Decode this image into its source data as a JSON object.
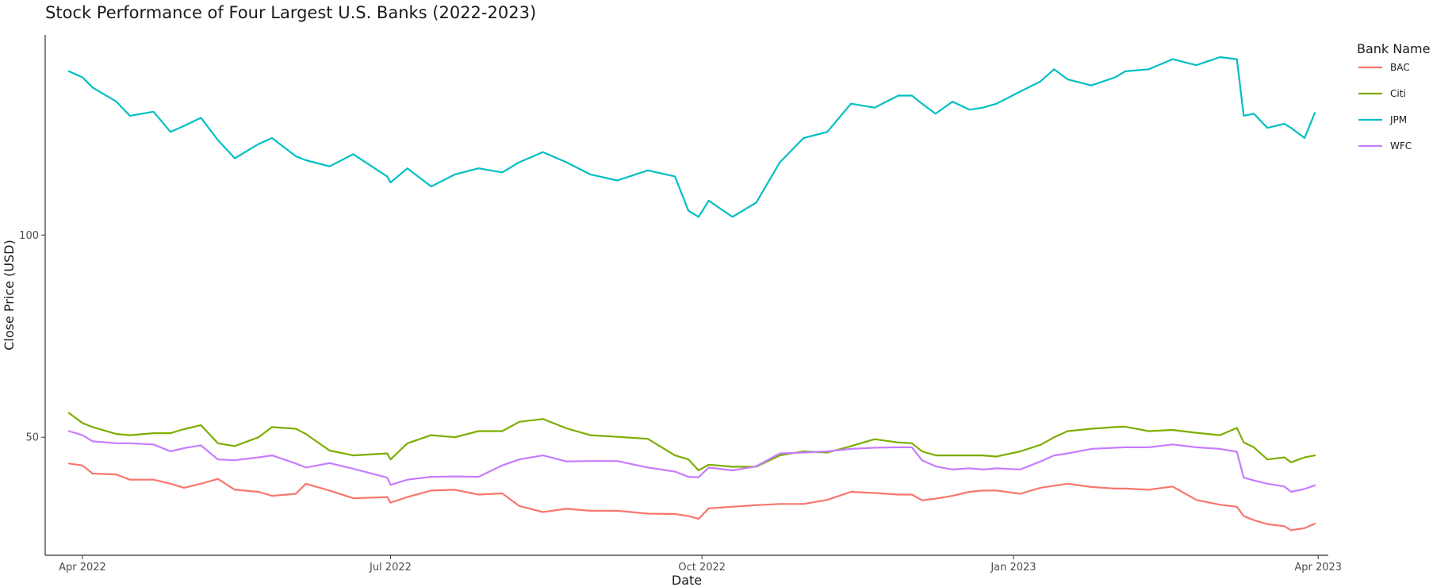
{
  "chart_data": {
    "type": "line",
    "title": "Stock Performance of Four Largest U.S. Banks (2022-2023)",
    "xlabel": "Date",
    "ylabel": "Close Price (USD)",
    "xlim": [
      "2022-03-21",
      "2023-04-04"
    ],
    "ylim": [
      20.8,
      149.5
    ],
    "grid": false,
    "legend_position": "right",
    "legend_title": "Bank Name",
    "x_ticks": [
      {
        "date": "2022-04-01",
        "label": "Apr 2022"
      },
      {
        "date": "2022-07-01",
        "label": "Jul 2022"
      },
      {
        "date": "2022-10-01",
        "label": "Oct 2022"
      },
      {
        "date": "2023-01-01",
        "label": "Jan 2023"
      },
      {
        "date": "2023-04-01",
        "label": "Apr 2023"
      }
    ],
    "y_ticks": [
      {
        "value": 50,
        "label": "50"
      },
      {
        "value": 100,
        "label": "100"
      }
    ],
    "series": [
      {
        "name": "BAC",
        "color": "#F8766D",
        "points": [
          [
            "2022-03-28",
            43.5
          ],
          [
            "2022-04-01",
            43
          ],
          [
            "2022-04-04",
            41
          ],
          [
            "2022-04-11",
            40.8
          ],
          [
            "2022-04-15",
            39.5
          ],
          [
            "2022-04-22",
            39.5
          ],
          [
            "2022-04-27",
            38.5
          ],
          [
            "2022-05-01",
            37.5
          ],
          [
            "2022-05-06",
            38.5
          ],
          [
            "2022-05-11",
            39.7
          ],
          [
            "2022-05-16",
            37
          ],
          [
            "2022-05-23",
            36.5
          ],
          [
            "2022-05-27",
            35.5
          ],
          [
            "2022-06-03",
            36
          ],
          [
            "2022-06-06",
            38.5
          ],
          [
            "2022-06-13",
            36.8
          ],
          [
            "2022-06-20",
            34.9
          ],
          [
            "2022-06-30",
            35.2
          ],
          [
            "2022-07-01",
            33.8
          ],
          [
            "2022-07-06",
            35.2
          ],
          [
            "2022-07-13",
            36.8
          ],
          [
            "2022-07-20",
            37
          ],
          [
            "2022-07-27",
            35.8
          ],
          [
            "2022-08-03",
            36.1
          ],
          [
            "2022-08-08",
            33
          ],
          [
            "2022-08-15",
            31.5
          ],
          [
            "2022-08-22",
            32.3
          ],
          [
            "2022-08-29",
            31.8
          ],
          [
            "2022-09-06",
            31.8
          ],
          [
            "2022-09-15",
            31.1
          ],
          [
            "2022-09-23",
            31
          ],
          [
            "2022-09-27",
            30.5
          ],
          [
            "2022-09-30",
            29.8
          ],
          [
            "2022-10-03",
            32.4
          ],
          [
            "2022-10-10",
            32.8
          ],
          [
            "2022-10-17",
            33.2
          ],
          [
            "2022-10-24",
            33.5
          ],
          [
            "2022-10-31",
            33.5
          ],
          [
            "2022-11-07",
            34.5
          ],
          [
            "2022-11-14",
            36.5
          ],
          [
            "2022-11-21",
            36.2
          ],
          [
            "2022-11-28",
            35.8
          ],
          [
            "2022-12-02",
            35.8
          ],
          [
            "2022-12-05",
            34.4
          ],
          [
            "2022-12-09",
            34.8
          ],
          [
            "2022-12-14",
            35.5
          ],
          [
            "2022-12-19",
            36.5
          ],
          [
            "2022-12-23",
            36.8
          ],
          [
            "2022-12-27",
            36.8
          ],
          [
            "2023-01-03",
            36
          ],
          [
            "2023-01-09",
            37.5
          ],
          [
            "2023-01-13",
            38
          ],
          [
            "2023-01-17",
            38.5
          ],
          [
            "2023-01-24",
            37.7
          ],
          [
            "2023-01-31",
            37.3
          ],
          [
            "2023-02-03",
            37.3
          ],
          [
            "2023-02-10",
            37
          ],
          [
            "2023-02-17",
            37.8
          ],
          [
            "2023-02-24",
            34.5
          ],
          [
            "2023-03-03",
            33.3
          ],
          [
            "2023-03-08",
            32.8
          ],
          [
            "2023-03-10",
            30.5
          ],
          [
            "2023-03-13",
            29.5
          ],
          [
            "2023-03-17",
            28.5
          ],
          [
            "2023-03-22",
            28
          ],
          [
            "2023-03-24",
            27
          ],
          [
            "2023-03-28",
            27.5
          ],
          [
            "2023-03-31",
            28.6
          ]
        ]
      },
      {
        "name": "Citi",
        "color": "#7CAE00",
        "points": [
          [
            "2022-03-28",
            56
          ],
          [
            "2022-04-01",
            53.5
          ],
          [
            "2022-04-04",
            52.5
          ],
          [
            "2022-04-11",
            50.8
          ],
          [
            "2022-04-15",
            50.5
          ],
          [
            "2022-04-22",
            51
          ],
          [
            "2022-04-27",
            51
          ],
          [
            "2022-05-01",
            52
          ],
          [
            "2022-05-06",
            53
          ],
          [
            "2022-05-11",
            48.5
          ],
          [
            "2022-05-16",
            47.8
          ],
          [
            "2022-05-23",
            50
          ],
          [
            "2022-05-27",
            52.5
          ],
          [
            "2022-06-03",
            52.1
          ],
          [
            "2022-06-06",
            50.8
          ],
          [
            "2022-06-13",
            46.7
          ],
          [
            "2022-06-20",
            45.5
          ],
          [
            "2022-06-30",
            46
          ],
          [
            "2022-07-01",
            44.5
          ],
          [
            "2022-07-06",
            48.5
          ],
          [
            "2022-07-13",
            50.5
          ],
          [
            "2022-07-20",
            50
          ],
          [
            "2022-07-27",
            51.5
          ],
          [
            "2022-08-03",
            51.5
          ],
          [
            "2022-08-08",
            53.8
          ],
          [
            "2022-08-15",
            54.5
          ],
          [
            "2022-08-22",
            52.2
          ],
          [
            "2022-08-29",
            50.5
          ],
          [
            "2022-09-06",
            50.1
          ],
          [
            "2022-09-15",
            49.6
          ],
          [
            "2022-09-23",
            45.5
          ],
          [
            "2022-09-27",
            44.5
          ],
          [
            "2022-09-30",
            41.8
          ],
          [
            "2022-10-03",
            43.2
          ],
          [
            "2022-10-10",
            42.7
          ],
          [
            "2022-10-17",
            42.7
          ],
          [
            "2022-10-24",
            45.5
          ],
          [
            "2022-10-31",
            46.5
          ],
          [
            "2022-11-07",
            46.2
          ],
          [
            "2022-11-14",
            47.8
          ],
          [
            "2022-11-21",
            49.5
          ],
          [
            "2022-11-28",
            48.7
          ],
          [
            "2022-12-02",
            48.5
          ],
          [
            "2022-12-05",
            46.5
          ],
          [
            "2022-12-09",
            45.5
          ],
          [
            "2022-12-14",
            45.5
          ],
          [
            "2022-12-19",
            45.5
          ],
          [
            "2022-12-23",
            45.5
          ],
          [
            "2022-12-27",
            45.2
          ],
          [
            "2023-01-03",
            46.5
          ],
          [
            "2023-01-09",
            48.1
          ],
          [
            "2023-01-13",
            50
          ],
          [
            "2023-01-17",
            51.5
          ],
          [
            "2023-01-24",
            52.1
          ],
          [
            "2023-01-31",
            52.5
          ],
          [
            "2023-02-03",
            52.6
          ],
          [
            "2023-02-10",
            51.5
          ],
          [
            "2023-02-17",
            51.8
          ],
          [
            "2023-02-24",
            51.1
          ],
          [
            "2023-03-03",
            50.5
          ],
          [
            "2023-03-08",
            52.3
          ],
          [
            "2023-03-10",
            48.7
          ],
          [
            "2023-03-13",
            47.5
          ],
          [
            "2023-03-17",
            44.5
          ],
          [
            "2023-03-22",
            45
          ],
          [
            "2023-03-24",
            43.8
          ],
          [
            "2023-03-28",
            45
          ],
          [
            "2023-03-31",
            45.5
          ]
        ]
      },
      {
        "name": "JPM",
        "color": "#00BFC4",
        "points": [
          [
            "2022-03-28",
            140.5
          ],
          [
            "2022-04-01",
            139
          ],
          [
            "2022-04-04",
            136.5
          ],
          [
            "2022-04-11",
            133
          ],
          [
            "2022-04-15",
            129.5
          ],
          [
            "2022-04-22",
            130.5
          ],
          [
            "2022-04-27",
            125.5
          ],
          [
            "2022-05-01",
            127
          ],
          [
            "2022-05-06",
            129
          ],
          [
            "2022-05-11",
            123.5
          ],
          [
            "2022-05-16",
            119
          ],
          [
            "2022-05-23",
            122.5
          ],
          [
            "2022-05-27",
            124
          ],
          [
            "2022-06-03",
            119.5
          ],
          [
            "2022-06-06",
            118.5
          ],
          [
            "2022-06-13",
            117
          ],
          [
            "2022-06-20",
            120
          ],
          [
            "2022-06-30",
            114.5
          ],
          [
            "2022-07-01",
            113
          ],
          [
            "2022-07-06",
            116.5
          ],
          [
            "2022-07-13",
            112
          ],
          [
            "2022-07-20",
            115
          ],
          [
            "2022-07-27",
            116.5
          ],
          [
            "2022-08-03",
            115.5
          ],
          [
            "2022-08-08",
            118
          ],
          [
            "2022-08-15",
            120.5
          ],
          [
            "2022-08-22",
            118
          ],
          [
            "2022-08-29",
            115
          ],
          [
            "2022-09-06",
            113.5
          ],
          [
            "2022-09-15",
            116
          ],
          [
            "2022-09-23",
            114.5
          ],
          [
            "2022-09-27",
            106
          ],
          [
            "2022-09-30",
            104.5
          ],
          [
            "2022-10-03",
            108.5
          ],
          [
            "2022-10-10",
            104.5
          ],
          [
            "2022-10-17",
            108
          ],
          [
            "2022-10-24",
            118
          ],
          [
            "2022-10-31",
            124
          ],
          [
            "2022-11-07",
            125.5
          ],
          [
            "2022-11-14",
            132.5
          ],
          [
            "2022-11-21",
            131.5
          ],
          [
            "2022-11-28",
            134.5
          ],
          [
            "2022-12-02",
            134.5
          ],
          [
            "2022-12-05",
            132.5
          ],
          [
            "2022-12-09",
            130
          ],
          [
            "2022-12-14",
            133
          ],
          [
            "2022-12-19",
            131
          ],
          [
            "2022-12-23",
            131.5
          ],
          [
            "2022-12-27",
            132.5
          ],
          [
            "2023-01-03",
            135.5
          ],
          [
            "2023-01-09",
            138
          ],
          [
            "2023-01-13",
            141
          ],
          [
            "2023-01-17",
            138.5
          ],
          [
            "2023-01-24",
            137
          ],
          [
            "2023-01-31",
            139
          ],
          [
            "2023-02-03",
            140.5
          ],
          [
            "2023-02-10",
            141
          ],
          [
            "2023-02-17",
            143.5
          ],
          [
            "2023-02-24",
            142
          ],
          [
            "2023-03-03",
            144
          ],
          [
            "2023-03-08",
            143.5
          ],
          [
            "2023-03-10",
            129.5
          ],
          [
            "2023-03-13",
            130
          ],
          [
            "2023-03-17",
            126.5
          ],
          [
            "2023-03-22",
            127.5
          ],
          [
            "2023-03-24",
            126.5
          ],
          [
            "2023-03-28",
            124
          ],
          [
            "2023-03-31",
            130.2
          ]
        ]
      },
      {
        "name": "WFC",
        "color": "#C77CFF",
        "points": [
          [
            "2022-03-28",
            51.5
          ],
          [
            "2022-04-01",
            50.5
          ],
          [
            "2022-04-04",
            49
          ],
          [
            "2022-04-11",
            48.5
          ],
          [
            "2022-04-15",
            48.5
          ],
          [
            "2022-04-22",
            48.2
          ],
          [
            "2022-04-27",
            46.5
          ],
          [
            "2022-05-01",
            47.3
          ],
          [
            "2022-05-06",
            48
          ],
          [
            "2022-05-11",
            44.5
          ],
          [
            "2022-05-16",
            44.3
          ],
          [
            "2022-05-23",
            45
          ],
          [
            "2022-05-27",
            45.5
          ],
          [
            "2022-06-03",
            43.5
          ],
          [
            "2022-06-06",
            42.5
          ],
          [
            "2022-06-13",
            43.6
          ],
          [
            "2022-06-20",
            42.2
          ],
          [
            "2022-06-30",
            40
          ],
          [
            "2022-07-01",
            38.2
          ],
          [
            "2022-07-06",
            39.5
          ],
          [
            "2022-07-13",
            40.2
          ],
          [
            "2022-07-20",
            40.3
          ],
          [
            "2022-07-27",
            40.2
          ],
          [
            "2022-08-03",
            43
          ],
          [
            "2022-08-08",
            44.5
          ],
          [
            "2022-08-15",
            45.5
          ],
          [
            "2022-08-22",
            44
          ],
          [
            "2022-08-29",
            44.1
          ],
          [
            "2022-09-06",
            44.1
          ],
          [
            "2022-09-15",
            42.5
          ],
          [
            "2022-09-23",
            41.5
          ],
          [
            "2022-09-27",
            40.2
          ],
          [
            "2022-09-30",
            40.1
          ],
          [
            "2022-10-03",
            42.5
          ],
          [
            "2022-10-10",
            41.8
          ],
          [
            "2022-10-17",
            42.8
          ],
          [
            "2022-10-24",
            46
          ],
          [
            "2022-10-31",
            46.2
          ],
          [
            "2022-11-07",
            46.5
          ],
          [
            "2022-11-14",
            47.1
          ],
          [
            "2022-11-21",
            47.4
          ],
          [
            "2022-11-28",
            47.5
          ],
          [
            "2022-12-02",
            47.5
          ],
          [
            "2022-12-05",
            44.3
          ],
          [
            "2022-12-09",
            42.8
          ],
          [
            "2022-12-14",
            42
          ],
          [
            "2022-12-19",
            42.3
          ],
          [
            "2022-12-23",
            42
          ],
          [
            "2022-12-27",
            42.3
          ],
          [
            "2023-01-03",
            42
          ],
          [
            "2023-01-09",
            44
          ],
          [
            "2023-01-13",
            45.5
          ],
          [
            "2023-01-17",
            46
          ],
          [
            "2023-01-24",
            47.1
          ],
          [
            "2023-01-31",
            47.4
          ],
          [
            "2023-02-03",
            47.5
          ],
          [
            "2023-02-10",
            47.5
          ],
          [
            "2023-02-17",
            48.2
          ],
          [
            "2023-02-24",
            47.5
          ],
          [
            "2023-03-03",
            47.1
          ],
          [
            "2023-03-08",
            46.4
          ],
          [
            "2023-03-10",
            40
          ],
          [
            "2023-03-13",
            39.3
          ],
          [
            "2023-03-17",
            38.5
          ],
          [
            "2023-03-22",
            37.8
          ],
          [
            "2023-03-24",
            36.5
          ],
          [
            "2023-03-28",
            37.2
          ],
          [
            "2023-03-31",
            38.1
          ]
        ]
      }
    ]
  }
}
